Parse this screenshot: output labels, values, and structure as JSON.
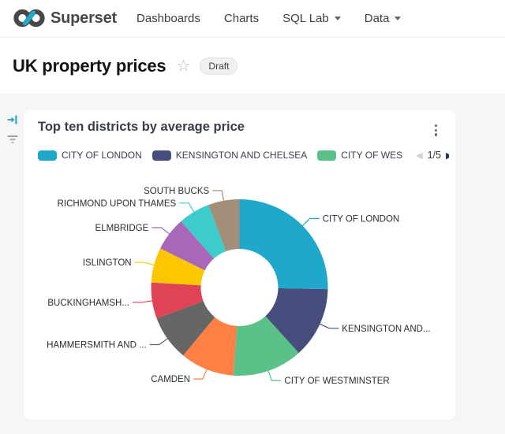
{
  "header": {
    "brand": "Superset",
    "nav": [
      {
        "label": "Dashboards",
        "has_caret": false
      },
      {
        "label": "Charts",
        "has_caret": false
      },
      {
        "label": "SQL Lab",
        "has_caret": true
      },
      {
        "label": "Data",
        "has_caret": true
      }
    ]
  },
  "dashboard": {
    "title": "UK property prices",
    "status_badge": "Draft",
    "star_icon": "☆"
  },
  "side_toolbar": {
    "expand_icon": "arrow-right-to-bar",
    "filter_icon": "filter-lines"
  },
  "chart_card": {
    "title": "Top ten districts by average price",
    "legend": {
      "items": [
        {
          "label": "CITY OF LONDON",
          "color": "#1FA8C9"
        },
        {
          "label": "KENSINGTON AND CHELSEA",
          "color": "#454E7C"
        },
        {
          "label": "CITY OF WES",
          "color": "#5AC189"
        }
      ],
      "pagination": {
        "current_page": "1/5",
        "prev_icon": "◀",
        "next_icon": "▶"
      }
    }
  },
  "colors": {
    "accent_teal": "#20A7C9",
    "page_background": "#F6F6F7",
    "card_background": "#FFFFFF"
  },
  "chart_data": {
    "type": "pie",
    "subtype": "donut",
    "title": "Top ten districts by average price",
    "legend_position": "top",
    "value_note": "no numeric values are shown on screen; percent = slice share estimated from slice angles",
    "series": [
      {
        "label": "CITY OF LONDON",
        "percent": 25.3,
        "color": "#1FA8C9"
      },
      {
        "label": "KENSINGTON AND...",
        "percent": 13.0,
        "color": "#454E7C"
      },
      {
        "label": "CITY OF WESTMINSTER",
        "percent": 12.8,
        "color": "#5AC189"
      },
      {
        "label": "CAMDEN",
        "percent": 9.9,
        "color": "#FF7F44"
      },
      {
        "label": "HAMMERSMITH AND ...",
        "percent": 8.3,
        "color": "#666666"
      },
      {
        "label": "BUCKINGHAMSH...",
        "percent": 6.6,
        "color": "#E04355"
      },
      {
        "label": "ISLINGTON",
        "percent": 6.4,
        "color": "#FCC700"
      },
      {
        "label": "ELMBRIDGE",
        "percent": 6.2,
        "color": "#A868B7"
      },
      {
        "label": "RICHMOND UPON THAMES",
        "percent": 5.8,
        "color": "#3CCCCB"
      },
      {
        "label": "SOUTH BUCKS",
        "percent": 5.7,
        "color": "#A38F79"
      }
    ]
  }
}
